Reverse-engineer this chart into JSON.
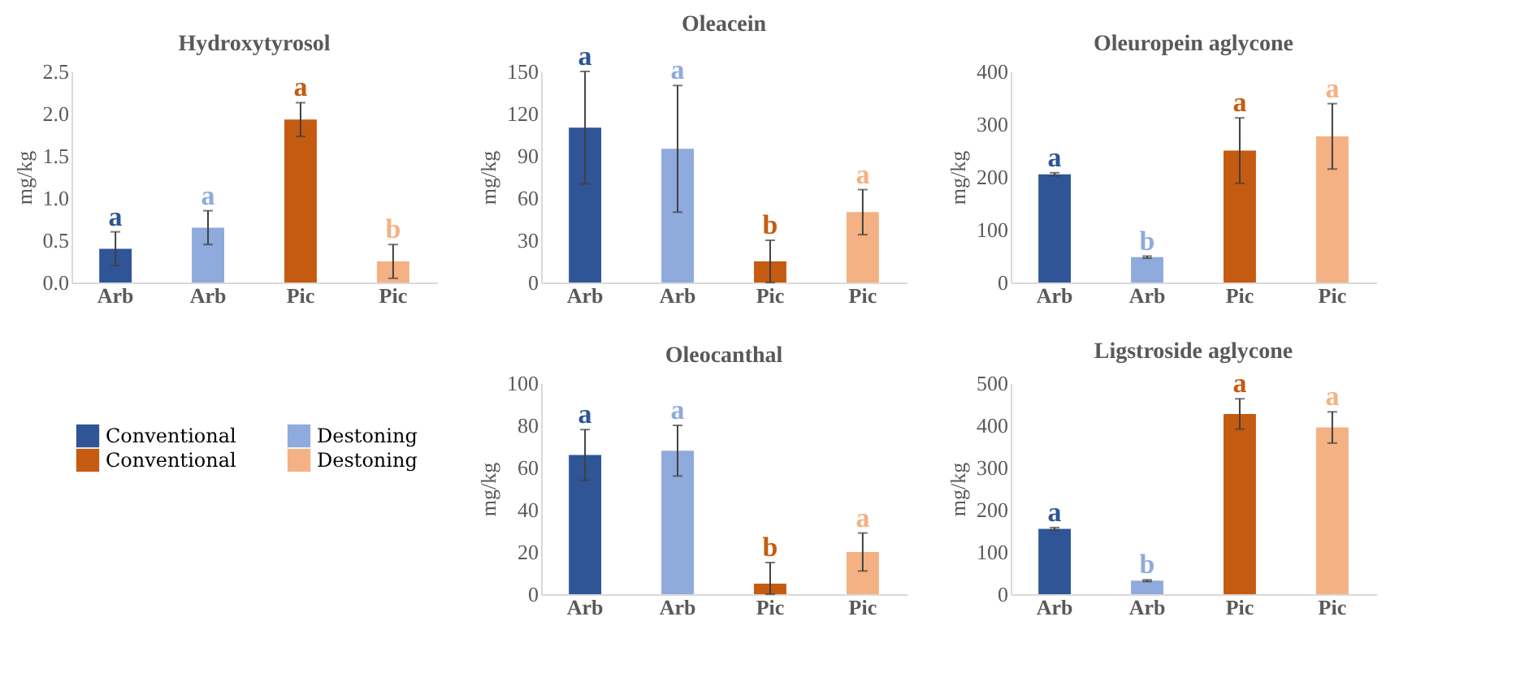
{
  "chart_data": [
    {
      "type": "bar",
      "title": "Hydroxytyrosol",
      "ylabel": "mg/kg",
      "categories": [
        "Arb",
        "Arb",
        "Pic",
        "Pic"
      ],
      "values": [
        0.4,
        0.65,
        1.93,
        0.25
      ],
      "errors": [
        0.2,
        0.2,
        0.2,
        0.2
      ],
      "colors": [
        "#2f5597",
        "#8faadc",
        "#c55a11",
        "#f4b183"
      ],
      "value_labels": [
        "a",
        "a",
        "a",
        "b"
      ],
      "ylim": [
        0,
        2.5
      ],
      "yticks": [
        {
          "value": 0,
          "label": "0.0"
        },
        {
          "value": 0.5,
          "label": "0.5"
        },
        {
          "value": 1,
          "label": "1.0"
        },
        {
          "value": 1.5,
          "label": "1.5"
        },
        {
          "value": 2,
          "label": "2.0"
        },
        {
          "value": 2.5,
          "label": "2.5"
        }
      ],
      "grid": false
    },
    {
      "type": "bar",
      "title": "Oleacein",
      "ylabel": "mg/kg",
      "categories": [
        "Arb",
        "Arb",
        "Pic",
        "Pic"
      ],
      "values": [
        110,
        95,
        15,
        50
      ],
      "errors": [
        40,
        45,
        15,
        16
      ],
      "colors": [
        "#2f5597",
        "#8faadc",
        "#c55a11",
        "#f4b183"
      ],
      "value_labels": [
        "a",
        "a",
        "b",
        "a"
      ],
      "ylim": [
        0,
        150
      ],
      "yticks": [
        0,
        30,
        60,
        90,
        120,
        150
      ],
      "grid": false
    },
    {
      "type": "bar",
      "title": "Oleuropein aglycone",
      "ylabel": "mg/kg",
      "categories": [
        "Arb",
        "Arb",
        "Pic",
        "Pic"
      ],
      "values": [
        205,
        48,
        250,
        277
      ],
      "errors": [
        3,
        2,
        62,
        62
      ],
      "colors": [
        "#2f5597",
        "#8faadc",
        "#c55a11",
        "#f4b183"
      ],
      "value_labels": [
        "a",
        "b",
        "a",
        "a"
      ],
      "ylim": [
        0,
        400
      ],
      "yticks": [
        0,
        100,
        200,
        300,
        400
      ],
      "grid": false
    },
    {
      "type": "other",
      "categories": [
        "Conventional",
        "Destoning",
        "Conventional",
        "Destoning"
      ],
      "colors": [
        "#2f5597",
        "#8faadc",
        "#c55a11",
        "#f4b183"
      ]
    },
    {
      "type": "bar",
      "title": "Oleocanthal",
      "ylabel": "mg/kg",
      "categories": [
        "Arb",
        "Arb",
        "Pic",
        "Pic"
      ],
      "values": [
        66,
        68,
        5,
        20
      ],
      "errors": [
        12,
        12,
        [
          0,
          15
        ],
        9
      ],
      "colors": [
        "#2f5597",
        "#8faadc",
        "#c55a11",
        "#f4b183"
      ],
      "value_labels": [
        "a",
        "a",
        "b",
        "a"
      ],
      "ylim": [
        0,
        100
      ],
      "yticks": [
        0,
        20,
        40,
        60,
        80,
        100
      ],
      "grid": false
    },
    {
      "type": "bar",
      "title": "Ligstroside aglycone",
      "ylabel": "mg/kg",
      "categories": [
        "Arb",
        "Arb",
        "Pic",
        "Pic"
      ],
      "values": [
        155,
        32,
        427,
        395
      ],
      "errors": [
        3,
        2,
        36,
        37
      ],
      "colors": [
        "#2f5597",
        "#8faadc",
        "#c55a11",
        "#f4b183"
      ],
      "value_labels": [
        "a",
        "b",
        "a",
        "a"
      ],
      "ylim": [
        0,
        500
      ],
      "yticks": [
        0,
        100,
        200,
        300,
        400,
        500
      ],
      "grid": false
    }
  ]
}
